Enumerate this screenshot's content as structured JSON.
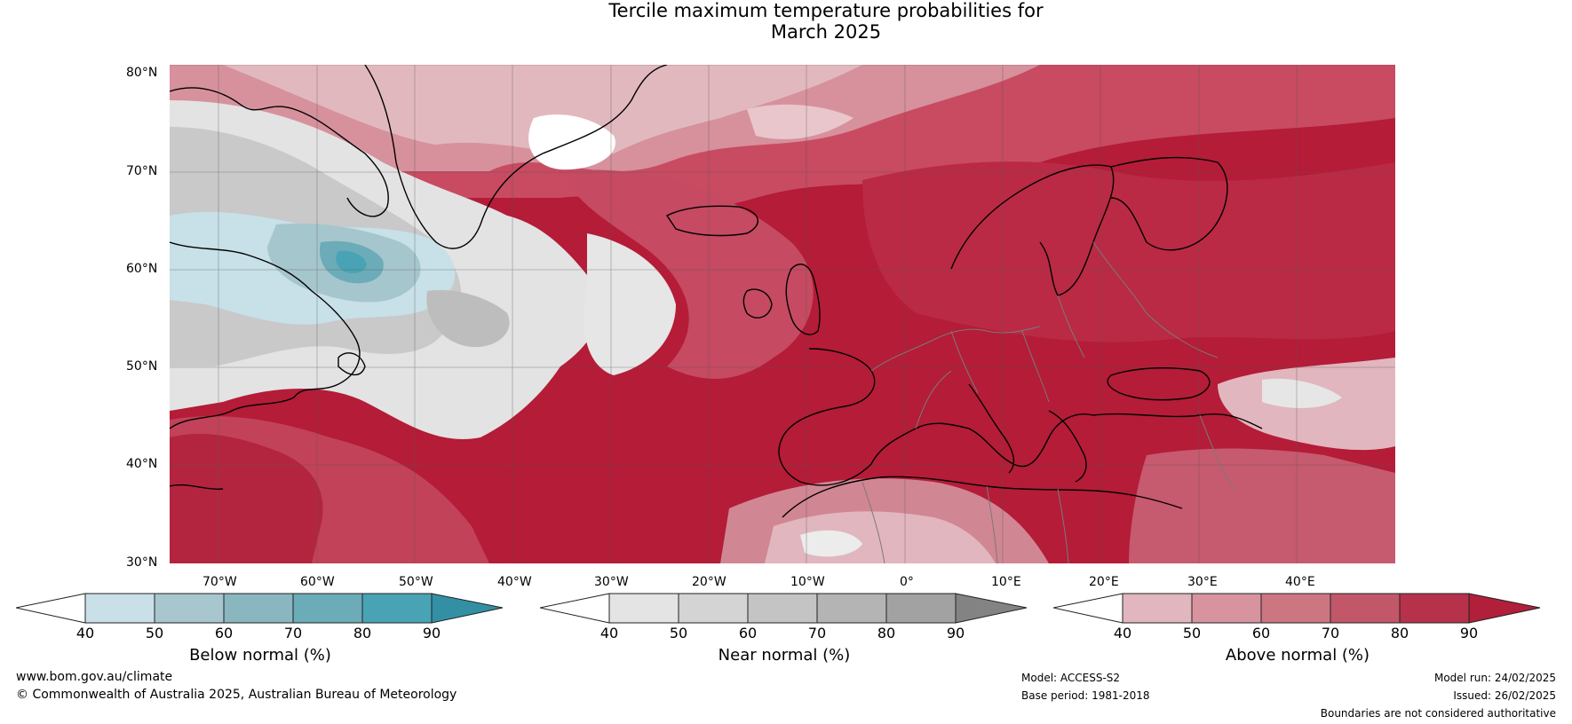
{
  "title": {
    "line1": "Tercile maximum temperature probabilities for",
    "line2": "March 2025"
  },
  "map": {
    "lat_labels": [
      "80°N",
      "70°N",
      "60°N",
      "50°N",
      "40°N",
      "30°N"
    ],
    "lon_labels": [
      "70°W",
      "60°W",
      "50°W",
      "40°W",
      "30°W",
      "20°W",
      "10°W",
      "0°",
      "10°E",
      "20°E",
      "30°E",
      "40°E"
    ],
    "lat_range": [
      30,
      81
    ],
    "lon_range": [
      -78,
      47
    ],
    "regions": {
      "ocean_atlantic": "Above normal 90%",
      "greenland_coast": "Above normal",
      "europe": "Above normal 80-90%",
      "labrador_sea": "Below normal 50-70%",
      "newfoundland_offshore": "Near normal 40-60%",
      "north_africa": "Above normal 40-60%"
    }
  },
  "colorbars": [
    {
      "name": "Below normal (%)",
      "ticks": [
        "40",
        "50",
        "60",
        "70",
        "80",
        "90"
      ],
      "colors": [
        "#ffffff",
        "#c9e0e8",
        "#a7c6cd",
        "#8ab6bf",
        "#6bacb8",
        "#48a4b4",
        "#3390a4"
      ]
    },
    {
      "name": "Near normal (%)",
      "ticks": [
        "40",
        "50",
        "60",
        "70",
        "80",
        "90"
      ],
      "colors": [
        "#ffffff",
        "#e4e4e4",
        "#d4d4d4",
        "#c4c4c4",
        "#b4b4b4",
        "#a2a2a2",
        "#838383"
      ]
    },
    {
      "name": "Above normal (%)",
      "ticks": [
        "40",
        "50",
        "60",
        "70",
        "80",
        "90"
      ],
      "colors": [
        "#ffffff",
        "#e2b6be",
        "#d7949f",
        "#cc7682",
        "#c15769",
        "#b6324a",
        "#b11f3a"
      ]
    }
  ],
  "footer": {
    "website": "www.bom.gov.au/climate",
    "copyright": "© Commonwealth of Australia 2025, Australian Bureau of Meteorology",
    "model": "Model: ACCESS-S2",
    "base_period": "Base period: 1981-2018",
    "model_run": "Model run: 24/02/2025",
    "issued": "Issued: 26/02/2025",
    "disclaimer": "Boundaries are not considered authoritative"
  }
}
